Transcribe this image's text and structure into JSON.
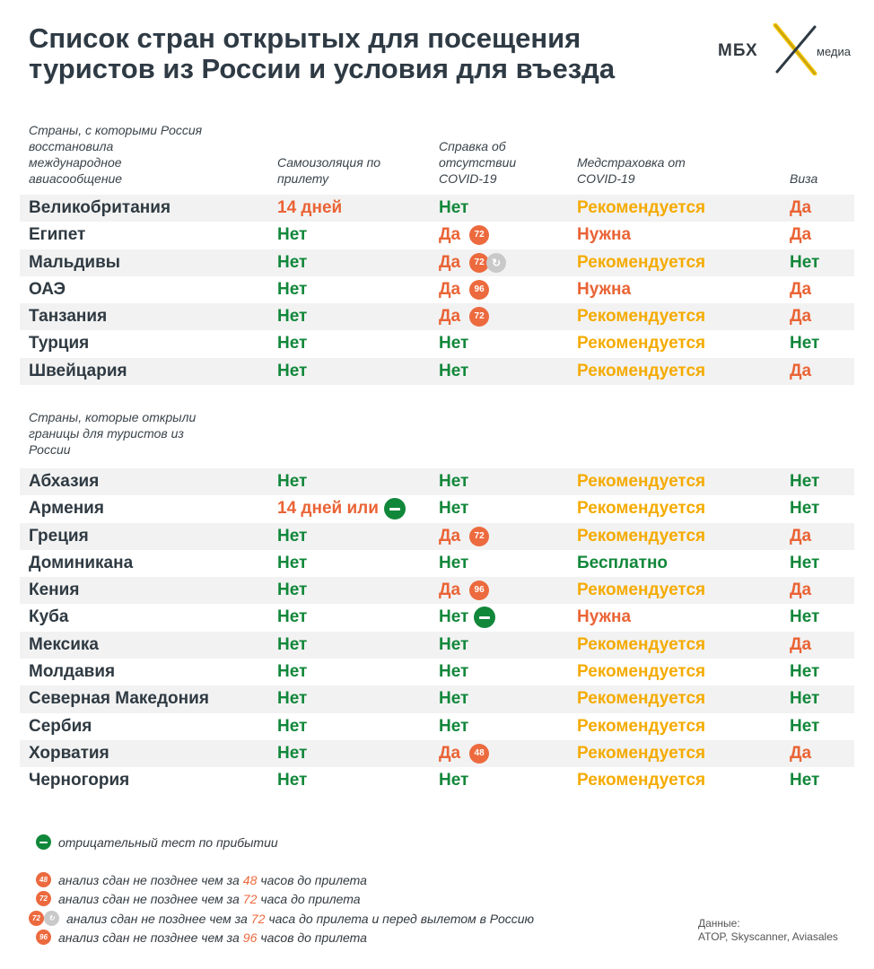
{
  "title": "Список стран открытых для посещения туристов из России и условия для въезда",
  "logo": {
    "main": "МБХ",
    "sub": "медиа"
  },
  "colors": {
    "green": "#11873a",
    "red": "#ea6335",
    "yellow": "#f5ab00",
    "badge": "#ec6a3e",
    "row_alt": "#f2f2f2"
  },
  "section1": {
    "header": "Страны, с которыми Россия восстановила международное авиасообщение",
    "columns": {
      "isolation": "Самоизоляция по прилету",
      "certificate": "Справка об отсутствии COVID-19",
      "insurance": "Медстраховка от COVID-19",
      "visa": "Виза"
    },
    "rows": [
      {
        "country": "Великобритания",
        "iso": "14 дней",
        "iso_c": "red",
        "cert": "Нет",
        "cert_c": "green",
        "ins": "Рекомендуется",
        "ins_c": "yellow",
        "visa": "Да",
        "visa_c": "red"
      },
      {
        "country": "Египет",
        "iso": "Нет",
        "iso_c": "green",
        "cert": "Да",
        "cert_c": "red",
        "badge": "72",
        "ins": "Нужна",
        "ins_c": "red",
        "visa": "Да",
        "visa_c": "red"
      },
      {
        "country": "Мальдивы",
        "iso": "Нет",
        "iso_c": "green",
        "cert": "Да",
        "cert_c": "red",
        "badge": "72",
        "badge_return": true,
        "ins": "Рекомендуется",
        "ins_c": "yellow",
        "visa": "Нет",
        "visa_c": "green"
      },
      {
        "country": "ОАЭ",
        "iso": "Нет",
        "iso_c": "green",
        "cert": "Да",
        "cert_c": "red",
        "badge": "96",
        "ins": "Нужна",
        "ins_c": "red",
        "visa": "Да",
        "visa_c": "red"
      },
      {
        "country": "Танзания",
        "iso": "Нет",
        "iso_c": "green",
        "cert": "Да",
        "cert_c": "red",
        "badge": "72",
        "ins": "Рекомендуется",
        "ins_c": "yellow",
        "visa": "Да",
        "visa_c": "red"
      },
      {
        "country": "Турция",
        "iso": "Нет",
        "iso_c": "green",
        "cert": "Нет",
        "cert_c": "green",
        "ins": "Рекомендуется",
        "ins_c": "yellow",
        "visa": "Нет",
        "visa_c": "green"
      },
      {
        "country": "Швейцария",
        "iso": "Нет",
        "iso_c": "green",
        "cert": "Нет",
        "cert_c": "green",
        "ins": "Рекомендуется",
        "ins_c": "yellow",
        "visa": "Да",
        "visa_c": "red"
      }
    ]
  },
  "section2": {
    "header": "Страны, которые открыли границы для туристов из России",
    "rows": [
      {
        "country": "Абхазия",
        "iso": "Нет",
        "iso_c": "green",
        "cert": "Нет",
        "cert_c": "green",
        "ins": "Рекомендуется",
        "ins_c": "yellow",
        "visa": "Нет",
        "visa_c": "green"
      },
      {
        "country": "Армения",
        "iso": "14 дней или",
        "iso_c": "red",
        "iso_neg": true,
        "cert": "Нет",
        "cert_c": "green",
        "ins": "Рекомендуется",
        "ins_c": "yellow",
        "visa": "Нет",
        "visa_c": "green"
      },
      {
        "country": "Греция",
        "iso": "Нет",
        "iso_c": "green",
        "cert": "Да",
        "cert_c": "red",
        "badge": "72",
        "ins": "Рекомендуется",
        "ins_c": "yellow",
        "visa": "Да",
        "visa_c": "red"
      },
      {
        "country": "Доминикана",
        "iso": "Нет",
        "iso_c": "green",
        "cert": "Нет",
        "cert_c": "green",
        "ins": "Бесплатно",
        "ins_c": "green",
        "visa": "Нет",
        "visa_c": "green"
      },
      {
        "country": "Кения",
        "iso": "Нет",
        "iso_c": "green",
        "cert": "Да",
        "cert_c": "red",
        "badge": "96",
        "ins": "Рекомендуется",
        "ins_c": "yellow",
        "visa": "Да",
        "visa_c": "red"
      },
      {
        "country": "Куба",
        "iso": "Нет",
        "iso_c": "green",
        "cert": "Нет",
        "cert_c": "green",
        "cert_neg": true,
        "ins": "Нужна",
        "ins_c": "red",
        "visa": "Нет",
        "visa_c": "green"
      },
      {
        "country": "Мексика",
        "iso": "Нет",
        "iso_c": "green",
        "cert": "Нет",
        "cert_c": "green",
        "ins": "Рекомендуется",
        "ins_c": "yellow",
        "visa": "Да",
        "visa_c": "red"
      },
      {
        "country": "Молдавия",
        "iso": "Нет",
        "iso_c": "green",
        "cert": "Нет",
        "cert_c": "green",
        "ins": "Рекомендуется",
        "ins_c": "yellow",
        "visa": "Нет",
        "visa_c": "green"
      },
      {
        "country": "Северная Македония",
        "iso": "Нет",
        "iso_c": "green",
        "cert": "Нет",
        "cert_c": "green",
        "ins": "Рекомендуется",
        "ins_c": "yellow",
        "visa": "Нет",
        "visa_c": "green"
      },
      {
        "country": "Сербия",
        "iso": "Нет",
        "iso_c": "green",
        "cert": "Нет",
        "cert_c": "green",
        "ins": "Рекомендуется",
        "ins_c": "yellow",
        "visa": "Нет",
        "visa_c": "green"
      },
      {
        "country": "Хорватия",
        "iso": "Нет",
        "iso_c": "green",
        "cert": "Да",
        "cert_c": "red",
        "badge": "48",
        "ins": "Рекомендуется",
        "ins_c": "yellow",
        "visa": "Да",
        "visa_c": "red"
      },
      {
        "country": "Черногория",
        "iso": "Нет",
        "iso_c": "green",
        "cert": "Нет",
        "cert_c": "green",
        "ins": "Рекомендуется",
        "ins_c": "yellow",
        "visa": "Нет",
        "visa_c": "green"
      }
    ]
  },
  "legend": {
    "negative_test": "отрицательный тест по прибытии",
    "items": [
      {
        "badge": "48",
        "pre": "анализ сдан не позднее чем за",
        "num": "48",
        "post": "часов до прилета"
      },
      {
        "badge": "72",
        "pre": "анализ сдан не позднее чем за",
        "num": "72",
        "post": "часа до прилета"
      },
      {
        "badge": "72",
        "badge_return": true,
        "pre": "анализ сдан не позднее чем за",
        "num": "72",
        "post": "часа до прилета и перед вылетом в Россию"
      },
      {
        "badge": "96",
        "pre": "анализ сдан не позднее чем за",
        "num": "96",
        "post": "часов до прилета"
      }
    ]
  },
  "source": {
    "label": "Данные:",
    "text": "ATOP, Skyscanner, Aviasales"
  }
}
